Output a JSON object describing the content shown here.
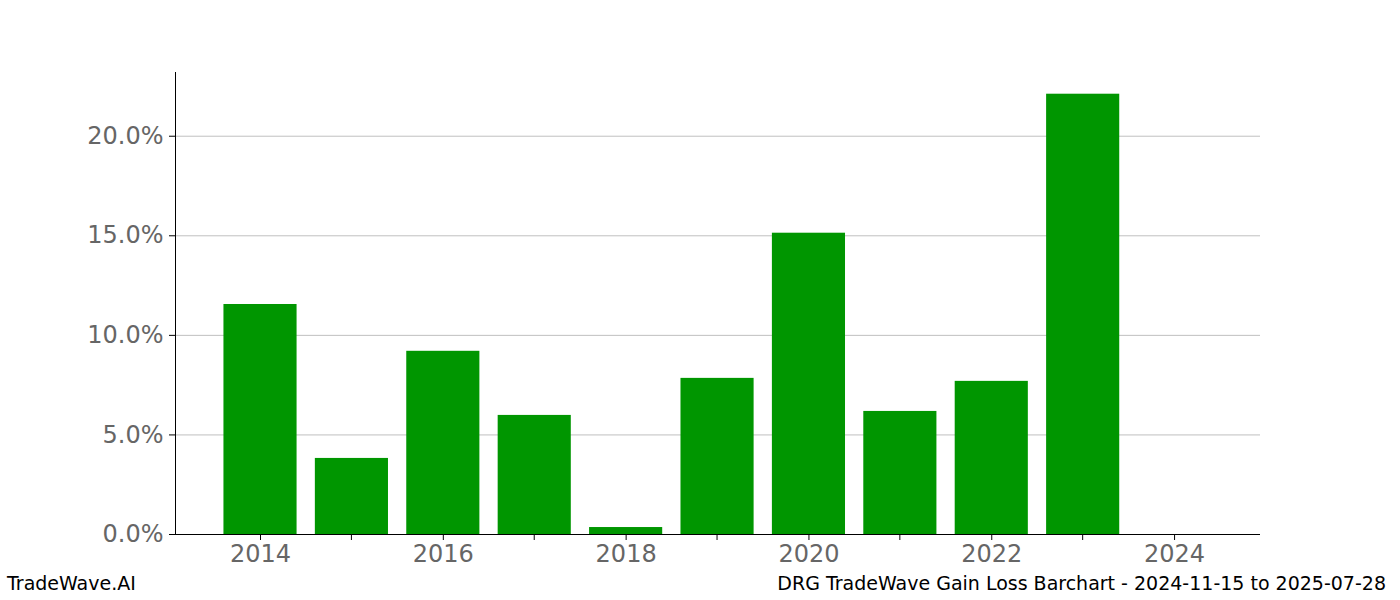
{
  "chart_data": {
    "type": "bar",
    "title": "DRG TradeWave Gain Loss Barchart - 2024-11-15 to 2025-07-28",
    "annotations": [
      "TradeWave.AI"
    ],
    "x": [
      2014,
      2015,
      2016,
      2017,
      2018,
      2019,
      2020,
      2021,
      2022,
      2023,
      2024
    ],
    "values": [
      11.55,
      3.82,
      9.2,
      5.98,
      0.35,
      7.84,
      15.13,
      6.18,
      7.69,
      22.11,
      0
    ],
    "color": "#009600",
    "xlim": [
      2013.07,
      2024.94
    ],
    "xticks": [
      2014,
      2016,
      2018,
      2020,
      2022,
      2024
    ],
    "ylim": [
      0,
      23.2
    ],
    "yticks": [
      {
        "value": 0,
        "label": "0.0%"
      },
      {
        "value": 5,
        "label": "5.0%"
      },
      {
        "value": 10,
        "label": "10.0%"
      },
      {
        "value": 15,
        "label": "15.0%"
      },
      {
        "value": 20,
        "label": "20.0%"
      }
    ],
    "grid": true
  }
}
